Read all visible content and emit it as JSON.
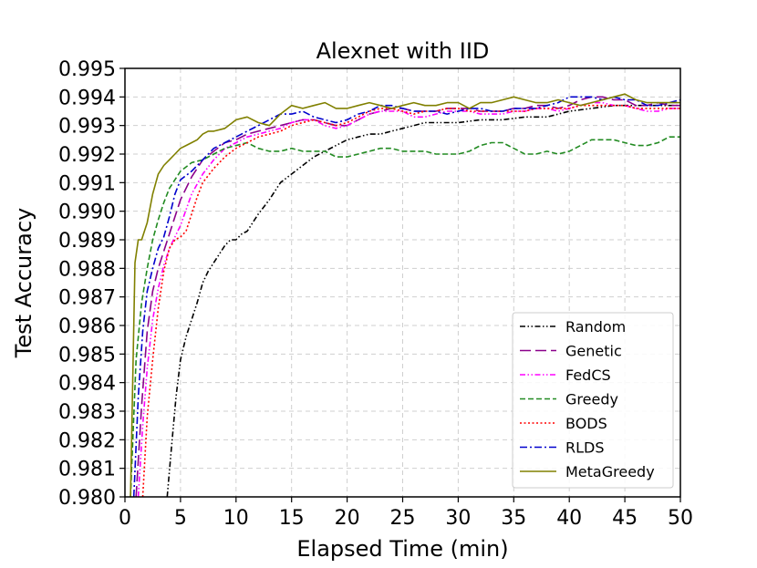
{
  "chart_data": {
    "type": "line",
    "title": "Alexnet with IID",
    "xlabel": "Elapsed Time (min)",
    "ylabel": "Test Accuracy",
    "xlim": [
      0,
      50
    ],
    "ylim": [
      0.98,
      0.995
    ],
    "xticks": [
      "0",
      "5",
      "10",
      "15",
      "20",
      "25",
      "30",
      "35",
      "40",
      "45",
      "50"
    ],
    "xtick_values": [
      0,
      5,
      10,
      15,
      20,
      25,
      30,
      35,
      40,
      45,
      50
    ],
    "yticks": [
      "0.980",
      "0.981",
      "0.982",
      "0.983",
      "0.984",
      "0.985",
      "0.986",
      "0.987",
      "0.988",
      "0.989",
      "0.990",
      "0.991",
      "0.992",
      "0.993",
      "0.994",
      "0.995"
    ],
    "ytick_values": [
      0.98,
      0.981,
      0.982,
      0.983,
      0.984,
      0.985,
      0.986,
      0.987,
      0.988,
      0.989,
      0.99,
      0.991,
      0.992,
      0.993,
      0.994,
      0.995
    ],
    "grid": true,
    "legend_position": "lower-right",
    "series": [
      {
        "name": "Random",
        "color": "#000000",
        "dash": "dashdotdot",
        "x": [
          3.8,
          4.2,
          4.6,
          5.0,
          5.5,
          6.0,
          6.5,
          7.0,
          7.5,
          8.0,
          8.5,
          9.0,
          9.5,
          10.0,
          10.5,
          11.0,
          12.0,
          13.0,
          14.0,
          15.0,
          16.0,
          17.0,
          18.0,
          19.0,
          20.0,
          21.0,
          22.0,
          23.0,
          24.0,
          25.0,
          26.0,
          27.0,
          28.0,
          30.0,
          32.0,
          34.0,
          36.0,
          38.0,
          40.0,
          42.0,
          44.0,
          46.0,
          48.0,
          50.0
        ],
        "y": [
          0.98,
          0.9818,
          0.9835,
          0.9848,
          0.9856,
          0.9862,
          0.9868,
          0.9875,
          0.9879,
          0.9882,
          0.9885,
          0.9888,
          0.989,
          0.989,
          0.9892,
          0.9893,
          0.9899,
          0.9904,
          0.991,
          0.9913,
          0.9916,
          0.9919,
          0.9921,
          0.9923,
          0.9925,
          0.9926,
          0.9927,
          0.9927,
          0.9928,
          0.9929,
          0.993,
          0.9931,
          0.9931,
          0.9931,
          0.9932,
          0.9932,
          0.9933,
          0.9933,
          0.9935,
          0.9936,
          0.9937,
          0.9937,
          0.9937,
          0.9937
        ]
      },
      {
        "name": "Genetic",
        "color": "#8b008b",
        "dash": "longdash",
        "x": [
          1.0,
          1.5,
          2.0,
          2.5,
          3.0,
          3.5,
          4.0,
          5.0,
          6.0,
          7.0,
          8.0,
          9.0,
          10.0,
          11.0,
          12.0,
          13.0,
          14.0,
          15.0,
          16.0,
          17.0,
          18.0,
          19.0,
          20.0,
          21.0,
          22.0,
          23.0,
          24.0,
          25.0,
          26.0,
          27.0,
          28.0,
          29.0,
          30.0,
          31.0,
          32.0,
          33.0,
          34.0,
          35.0,
          36.0,
          37.0,
          38.0,
          39.0,
          40.0,
          41.0,
          42.0,
          43.0,
          44.0,
          45.0,
          46.0,
          47.0,
          48.0,
          49.0,
          50.0
        ],
        "y": [
          0.98,
          0.9832,
          0.9858,
          0.9872,
          0.988,
          0.9886,
          0.9892,
          0.9904,
          0.9912,
          0.9918,
          0.9921,
          0.9924,
          0.9925,
          0.9927,
          0.9928,
          0.9929,
          0.993,
          0.9931,
          0.9932,
          0.9932,
          0.9931,
          0.993,
          0.993,
          0.9932,
          0.9934,
          0.9935,
          0.9936,
          0.9936,
          0.9935,
          0.9935,
          0.9935,
          0.9936,
          0.9936,
          0.9936,
          0.9935,
          0.9935,
          0.9935,
          0.9936,
          0.9936,
          0.9937,
          0.9937,
          0.9936,
          0.9937,
          0.9939,
          0.994,
          0.994,
          0.9939,
          0.9939,
          0.9937,
          0.9937,
          0.9938,
          0.9937,
          0.9937
        ]
      },
      {
        "name": "FedCS",
        "color": "#ff00ff",
        "dash": "dashdotdot",
        "x": [
          1.2,
          1.6,
          2.0,
          2.5,
          3.0,
          3.5,
          4.0,
          4.5,
          5.0,
          6.0,
          7.0,
          8.0,
          9.0,
          10.0,
          11.0,
          12.0,
          13.0,
          14.0,
          15.0,
          16.0,
          17.0,
          18.0,
          19.0,
          20.0,
          21.0,
          22.0,
          23.0,
          24.0,
          25.0,
          26.0,
          27.0,
          28.0,
          29.0,
          30.0,
          31.0,
          32.0,
          33.0,
          34.0,
          35.0,
          36.0,
          37.0,
          38.0,
          39.0,
          40.0,
          41.0,
          42.0,
          43.0,
          44.0,
          45.0,
          46.0,
          47.0,
          48.0,
          49.0,
          50.0
        ],
        "y": [
          0.98,
          0.9825,
          0.9845,
          0.9862,
          0.9873,
          0.9881,
          0.9887,
          0.9891,
          0.9895,
          0.9906,
          0.9913,
          0.9918,
          0.9922,
          0.9924,
          0.9926,
          0.9927,
          0.9928,
          0.9929,
          0.9931,
          0.9932,
          0.9932,
          0.993,
          0.9929,
          0.993,
          0.9932,
          0.9934,
          0.9935,
          0.9935,
          0.9935,
          0.9933,
          0.9933,
          0.9934,
          0.9935,
          0.9935,
          0.9935,
          0.9934,
          0.9934,
          0.9934,
          0.9935,
          0.9935,
          0.9936,
          0.9936,
          0.9935,
          0.9936,
          0.9937,
          0.9938,
          0.9938,
          0.9937,
          0.9937,
          0.9936,
          0.9935,
          0.9935,
          0.9936,
          0.9936
        ]
      },
      {
        "name": "Greedy",
        "color": "#228b22",
        "dash": "dashed",
        "x": [
          0.5,
          1.0,
          1.5,
          2.0,
          2.5,
          3.0,
          3.5,
          4.0,
          5.0,
          6.0,
          7.0,
          8.0,
          9.0,
          10.0,
          11.0,
          12.0,
          13.0,
          14.0,
          15.0,
          16.0,
          17.0,
          18.0,
          19.0,
          20.0,
          21.0,
          22.0,
          23.0,
          24.0,
          25.0,
          26.0,
          27.0,
          28.0,
          29.0,
          30.0,
          31.0,
          32.0,
          33.0,
          34.0,
          35.0,
          36.0,
          37.0,
          38.0,
          39.0,
          40.0,
          41.0,
          42.0,
          43.0,
          44.0,
          45.0,
          46.0,
          47.0,
          48.0,
          49.0,
          50.0
        ],
        "y": [
          0.98,
          0.9848,
          0.9868,
          0.988,
          0.989,
          0.9897,
          0.9903,
          0.9908,
          0.9914,
          0.9917,
          0.9918,
          0.992,
          0.9922,
          0.9923,
          0.9924,
          0.9922,
          0.9921,
          0.9921,
          0.9922,
          0.9921,
          0.9921,
          0.9921,
          0.9919,
          0.9919,
          0.992,
          0.9921,
          0.9922,
          0.9922,
          0.9921,
          0.9921,
          0.9921,
          0.992,
          0.992,
          0.992,
          0.9921,
          0.9923,
          0.9924,
          0.9924,
          0.9922,
          0.992,
          0.992,
          0.9921,
          0.992,
          0.9921,
          0.9923,
          0.9925,
          0.9925,
          0.9925,
          0.9924,
          0.9923,
          0.9923,
          0.9924,
          0.9926,
          0.9926
        ]
      },
      {
        "name": "BODS",
        "color": "#ff0000",
        "dash": "dotted",
        "x": [
          1.6,
          2.0,
          2.5,
          3.0,
          3.5,
          4.0,
          4.5,
          5.0,
          5.5,
          6.0,
          6.5,
          7.0,
          8.0,
          9.0,
          10.0,
          11.0,
          12.0,
          13.0,
          14.0,
          15.0,
          16.0,
          17.0,
          18.0,
          19.0,
          20.0,
          21.0,
          22.0,
          23.0,
          24.0,
          25.0,
          26.0,
          27.0,
          28.0,
          29.0,
          30.0,
          31.0,
          32.0,
          33.0,
          34.0,
          35.0,
          36.0,
          37.0,
          38.0,
          39.0,
          40.0,
          41.0,
          42.0,
          43.0,
          44.0,
          45.0,
          46.0,
          47.0,
          48.0,
          49.0,
          50.0
        ],
        "y": [
          0.98,
          0.9828,
          0.9848,
          0.9866,
          0.9879,
          0.9887,
          0.989,
          0.9891,
          0.9893,
          0.9899,
          0.9905,
          0.991,
          0.9915,
          0.9919,
          0.9922,
          0.9924,
          0.9926,
          0.9927,
          0.9928,
          0.993,
          0.9931,
          0.9932,
          0.9931,
          0.993,
          0.9931,
          0.9933,
          0.9935,
          0.9936,
          0.9936,
          0.9935,
          0.9934,
          0.9935,
          0.9935,
          0.9936,
          0.9936,
          0.9935,
          0.9935,
          0.9935,
          0.9935,
          0.9935,
          0.9935,
          0.9936,
          0.9936,
          0.9936,
          0.9936,
          0.9937,
          0.9937,
          0.9937,
          0.9937,
          0.9937,
          0.9936,
          0.9936,
          0.9936,
          0.9936,
          0.9936
        ]
      },
      {
        "name": "RLDS",
        "color": "#0000cd",
        "dash": "dashdot",
        "x": [
          0.8,
          1.2,
          1.6,
          2.0,
          2.5,
          3.0,
          3.5,
          4.0,
          4.5,
          5.0,
          6.0,
          7.0,
          8.0,
          9.0,
          10.0,
          11.0,
          12.0,
          13.0,
          14.0,
          15.0,
          16.0,
          17.0,
          18.0,
          19.0,
          20.0,
          21.0,
          22.0,
          23.0,
          24.0,
          25.0,
          26.0,
          27.0,
          28.0,
          29.0,
          30.0,
          31.0,
          32.0,
          33.0,
          34.0,
          35.0,
          36.0,
          37.0,
          38.0,
          39.0,
          40.0,
          41.0,
          42.0,
          43.0,
          44.0,
          45.0,
          46.0,
          47.0,
          48.0,
          49.0,
          50.0
        ],
        "y": [
          0.98,
          0.9835,
          0.9858,
          0.9872,
          0.988,
          0.9887,
          0.9891,
          0.9898,
          0.9906,
          0.9911,
          0.9914,
          0.9918,
          0.9922,
          0.9924,
          0.9926,
          0.9928,
          0.993,
          0.9932,
          0.9934,
          0.9934,
          0.9935,
          0.9933,
          0.9932,
          0.9931,
          0.9932,
          0.9934,
          0.9935,
          0.9937,
          0.9937,
          0.9936,
          0.9935,
          0.9935,
          0.9935,
          0.9934,
          0.9935,
          0.9936,
          0.9936,
          0.9935,
          0.9935,
          0.9936,
          0.9936,
          0.9936,
          0.9937,
          0.9938,
          0.994,
          0.994,
          0.994,
          0.9939,
          0.994,
          0.9939,
          0.9939,
          0.9937,
          0.9937,
          0.9938,
          0.9939
        ]
      },
      {
        "name": "MetaGreedy",
        "color": "#808000",
        "dash": "solid",
        "x": [
          0.5,
          0.9,
          1.2,
          1.5,
          2.0,
          2.5,
          3.0,
          3.5,
          4.0,
          4.5,
          5.0,
          5.5,
          6.0,
          6.5,
          7.0,
          7.5,
          8.0,
          9.0,
          10.0,
          11.0,
          12.0,
          13.0,
          14.0,
          15.0,
          16.0,
          17.0,
          18.0,
          19.0,
          20.0,
          21.0,
          22.0,
          23.0,
          24.0,
          25.0,
          26.0,
          27.0,
          28.0,
          29.0,
          30.0,
          31.0,
          32.0,
          33.0,
          34.0,
          35.0,
          36.0,
          37.0,
          38.0,
          39.0,
          40.0,
          41.0,
          42.0,
          43.0,
          44.0,
          45.0,
          46.0,
          47.0,
          48.0,
          49.0,
          50.0
        ],
        "y": [
          0.98,
          0.9882,
          0.989,
          0.989,
          0.9896,
          0.9906,
          0.9913,
          0.9916,
          0.9918,
          0.992,
          0.9922,
          0.9923,
          0.9924,
          0.9925,
          0.9927,
          0.9928,
          0.9928,
          0.9929,
          0.9932,
          0.9933,
          0.9931,
          0.993,
          0.9934,
          0.9937,
          0.9936,
          0.9937,
          0.9938,
          0.9936,
          0.9936,
          0.9937,
          0.9938,
          0.9937,
          0.9936,
          0.9937,
          0.9938,
          0.9937,
          0.9937,
          0.9938,
          0.9938,
          0.9936,
          0.9938,
          0.9938,
          0.9939,
          0.994,
          0.9939,
          0.9938,
          0.9938,
          0.9939,
          0.9938,
          0.9937,
          0.9938,
          0.9939,
          0.994,
          0.9941,
          0.9939,
          0.9938,
          0.9938,
          0.9938,
          0.9938
        ]
      }
    ]
  }
}
